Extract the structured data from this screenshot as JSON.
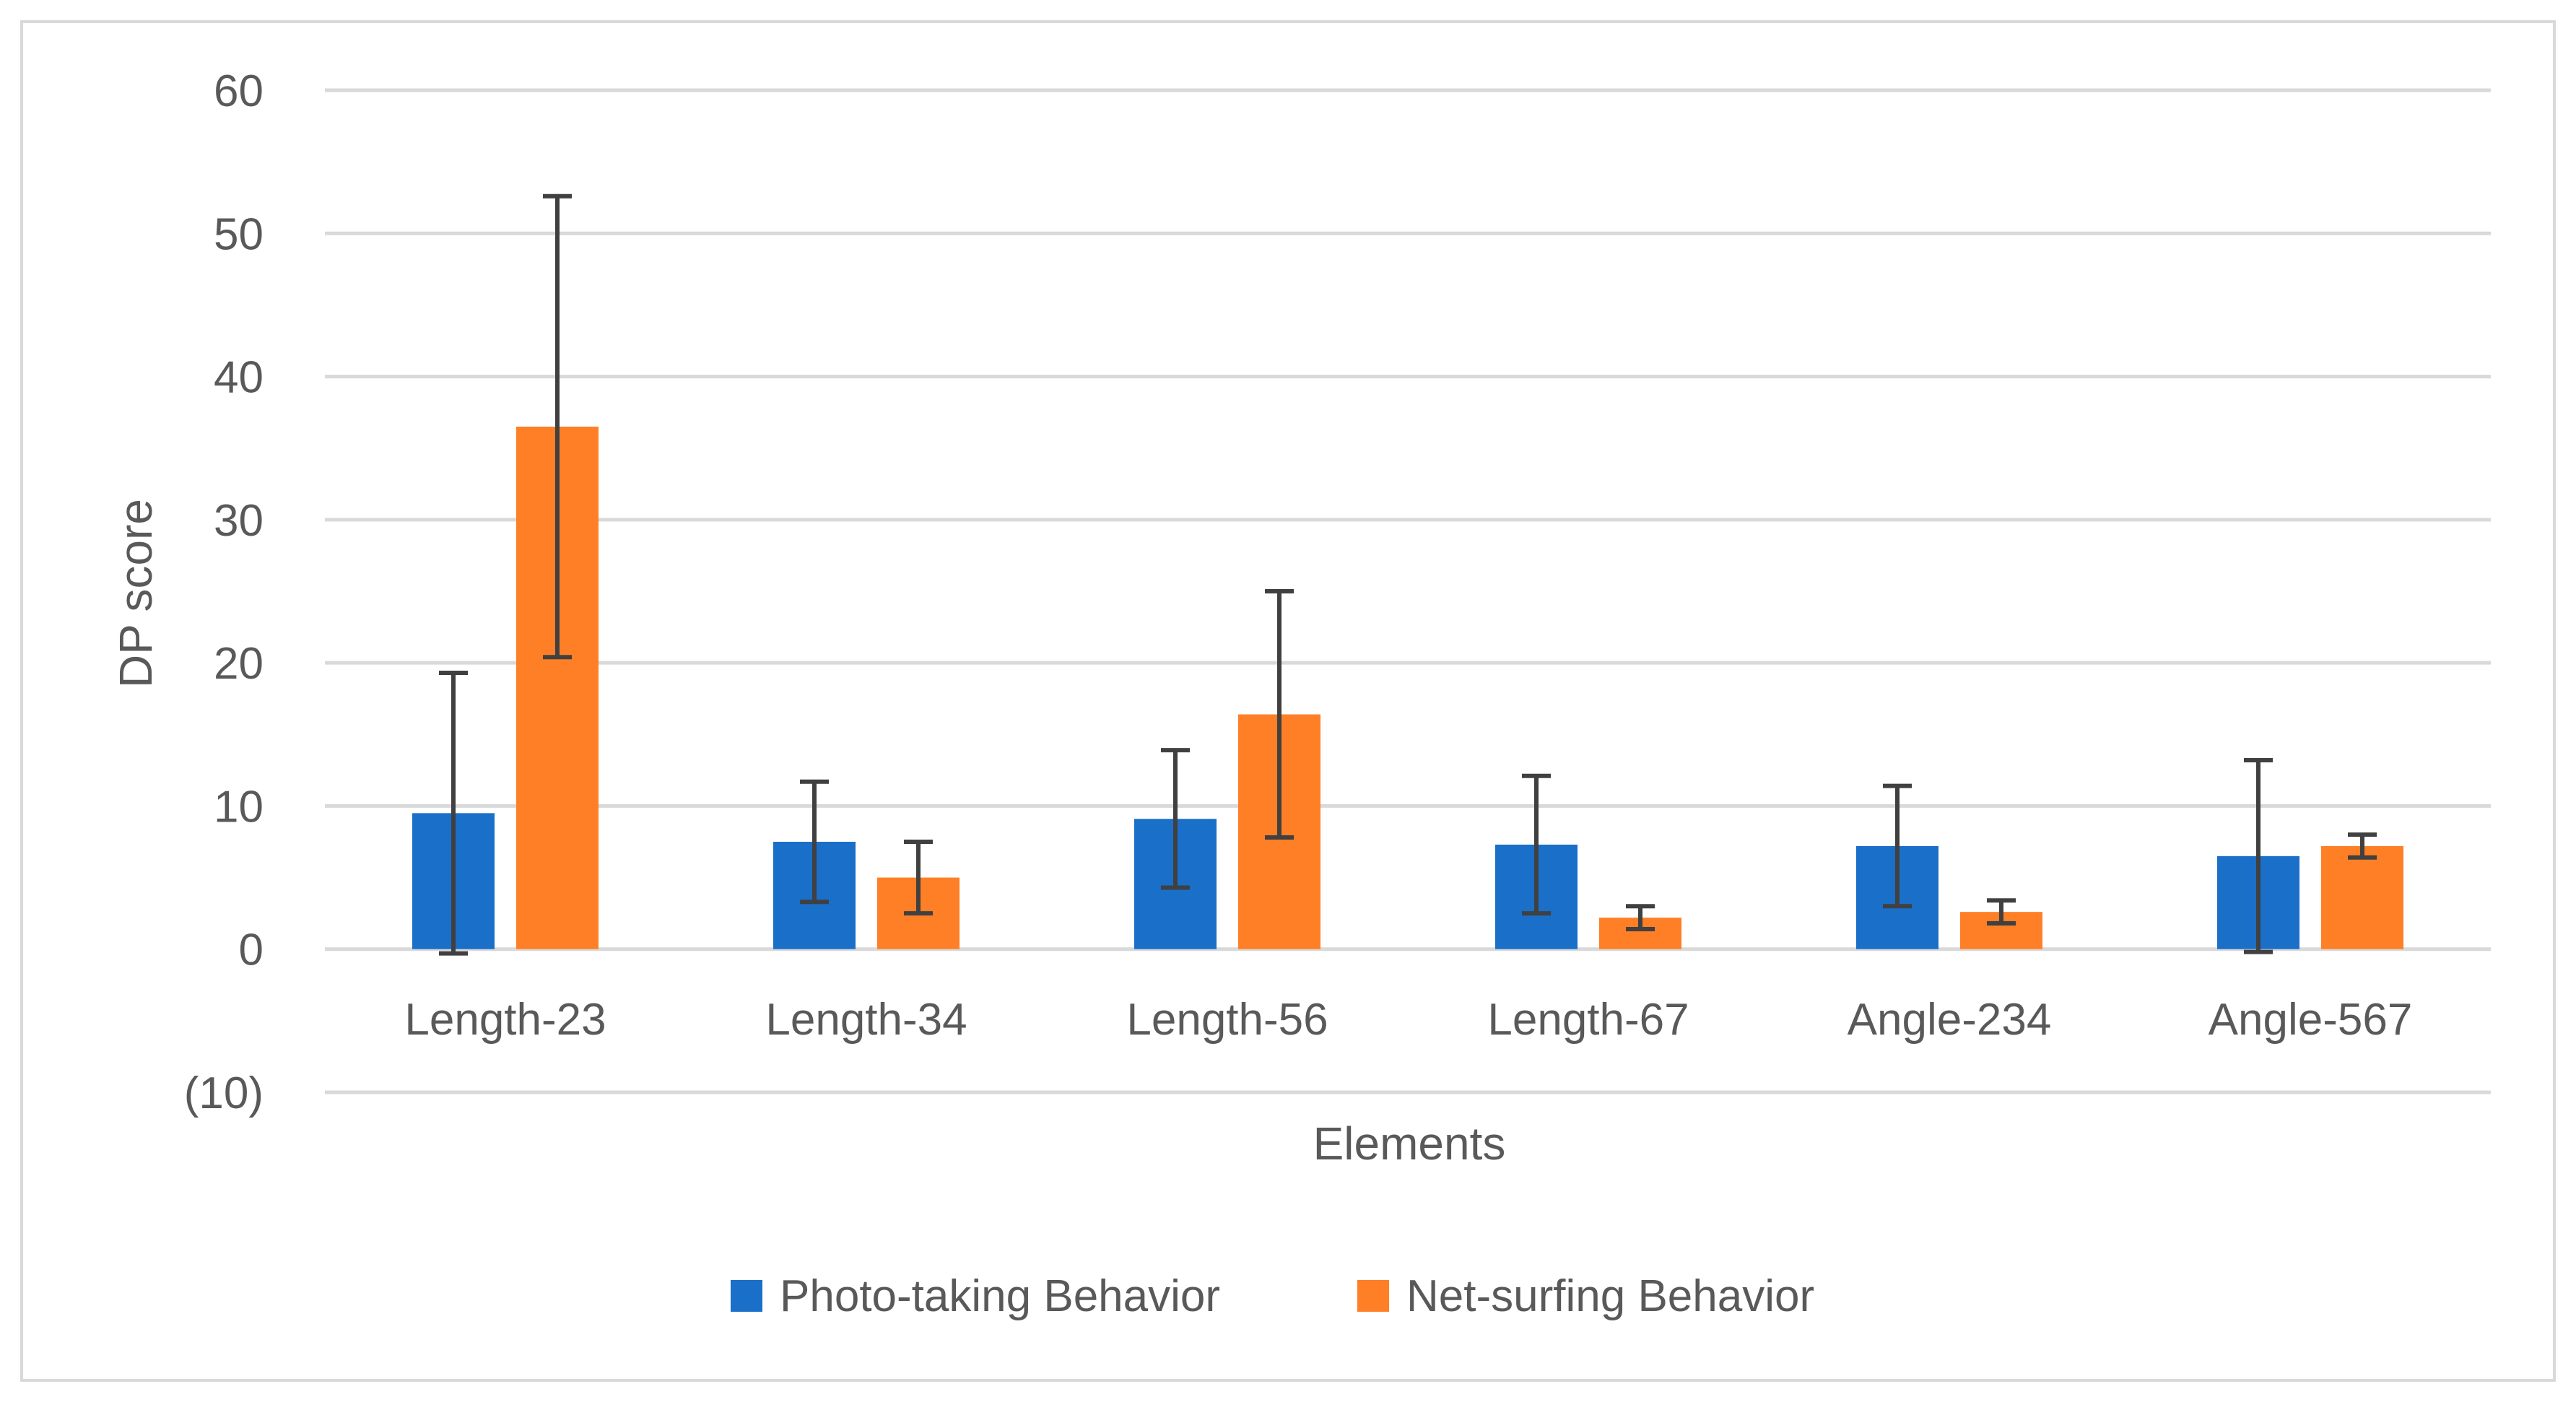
{
  "chart_data": {
    "type": "bar",
    "title": "",
    "xlabel": "Elements",
    "ylabel": "DP score",
    "ylim": [
      -10,
      60
    ],
    "yticks": [
      60,
      50,
      40,
      30,
      20,
      10,
      0,
      -10
    ],
    "ytick_labels": [
      "60",
      "50",
      "40",
      "30",
      "20",
      "10",
      "0",
      "(10)"
    ],
    "grid": true,
    "legend_position": "bottom",
    "categories": [
      "Length-23",
      "Length-34",
      "Length-56",
      "Length-67",
      "Angle-234",
      "Angle-567"
    ],
    "series": [
      {
        "name": "Photo-taking Behavior",
        "color": "#1a6fc9",
        "values": [
          9.5,
          7.5,
          9.1,
          7.3,
          7.2,
          6.5
        ],
        "error": [
          9.8,
          4.2,
          4.8,
          4.8,
          4.2,
          6.7
        ]
      },
      {
        "name": "Net-surfing Behavior",
        "color": "#ff7f27",
        "values": [
          36.5,
          5.0,
          16.4,
          2.2,
          2.6,
          7.2
        ],
        "error": [
          16.1,
          2.5,
          8.6,
          0.8,
          0.8,
          0.8
        ]
      }
    ],
    "grid_color": "#d9d9d9",
    "error_bar_color": "#404040"
  }
}
